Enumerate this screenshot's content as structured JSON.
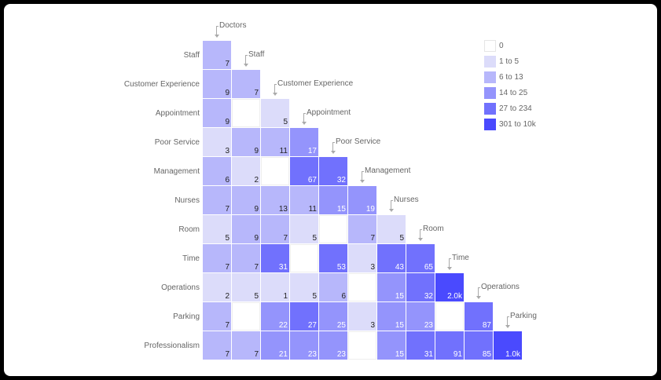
{
  "chart_data": {
    "type": "heatmap",
    "title": "",
    "layout": "lower-triangular co-occurrence matrix",
    "x_categories": [
      "Doctors",
      "Staff",
      "Customer Experience",
      "Appointment",
      "Poor Service",
      "Management",
      "Nurses",
      "Room",
      "Time",
      "Operations",
      "Parking"
    ],
    "y_categories": [
      "Staff",
      "Customer Experience",
      "Appointment",
      "Poor Service",
      "Management",
      "Nurses",
      "Room",
      "Time",
      "Operations",
      "Parking",
      "Professionalism"
    ],
    "rows": [
      {
        "label": "Staff",
        "values": [
          7
        ]
      },
      {
        "label": "Customer Experience",
        "values": [
          9,
          7
        ]
      },
      {
        "label": "Appointment",
        "values": [
          9,
          0,
          5
        ]
      },
      {
        "label": "Poor Service",
        "values": [
          3,
          9,
          11,
          17
        ]
      },
      {
        "label": "Management",
        "values": [
          6,
          2,
          0,
          67,
          32
        ]
      },
      {
        "label": "Nurses",
        "values": [
          7,
          9,
          13,
          11,
          15,
          19
        ]
      },
      {
        "label": "Room",
        "values": [
          5,
          9,
          7,
          5,
          0,
          7,
          5
        ]
      },
      {
        "label": "Time",
        "values": [
          7,
          7,
          31,
          0,
          53,
          3,
          43,
          65
        ]
      },
      {
        "label": "Operations",
        "values": [
          2,
          5,
          1,
          5,
          6,
          0,
          15,
          32,
          2000
        ]
      },
      {
        "label": "Parking",
        "values": [
          7,
          0,
          22,
          27,
          25,
          3,
          15,
          23,
          0,
          87
        ]
      },
      {
        "label": "Professionalism",
        "values": [
          7,
          7,
          21,
          23,
          23,
          0,
          15,
          31,
          91,
          85,
          1000
        ]
      }
    ],
    "display_labels": {
      "2000": "2.0k",
      "1000": "1.0k"
    },
    "legend": {
      "position": "right",
      "items": [
        {
          "label": "0",
          "min": 0,
          "max": 0,
          "color": "#ffffff"
        },
        {
          "label": "1 to 5",
          "min": 1,
          "max": 5,
          "color": "#dcdcfa"
        },
        {
          "label": "6 to 13",
          "min": 6,
          "max": 13,
          "color": "#b7b7fb"
        },
        {
          "label": "14 to 25",
          "min": 14,
          "max": 25,
          "color": "#9494fc"
        },
        {
          "label": "27 to 234",
          "min": 27,
          "max": 234,
          "color": "#7171fd"
        },
        {
          "label": "301 to 10k",
          "min": 301,
          "max": 10000,
          "color": "#4a4afe"
        }
      ]
    },
    "grid": false
  }
}
